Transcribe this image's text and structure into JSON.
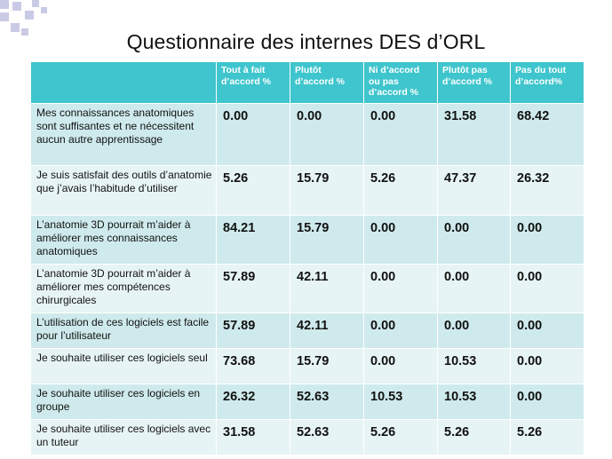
{
  "title": "Questionnaire des internes DES d’ORL",
  "columns": [
    "",
    "Tout à fait d’accord %",
    "Plutôt d’accord %",
    "Ni d’accord ou pas d’accord %",
    "Plutôt pas d’accord %",
    "Pas du tout d’accord%"
  ],
  "rows": [
    {
      "statement": "Mes connaissances anatomiques sont suffisantes et ne nécessitent aucun autre apprentissage",
      "values": [
        "0.00",
        "0.00",
        "0.00",
        "31.58",
        "68.42"
      ]
    },
    {
      "statement": "Je suis satisfait des outils d’anatomie que j’avais l’habitude d’utiliser",
      "values": [
        "5.26",
        "15.79",
        "5.26",
        "47.37",
        "26.32"
      ]
    },
    {
      "statement": "L’anatomie 3D pourrait m’aider à améliorer mes connaissances anatomiques",
      "values": [
        "84.21",
        "15.79",
        "0.00",
        "0.00",
        "0.00"
      ]
    },
    {
      "statement": "L’anatomie 3D pourrait m’aider à améliorer mes compétences chirurgicales",
      "values": [
        "57.89",
        "42.11",
        "0.00",
        "0.00",
        "0.00"
      ]
    },
    {
      "statement": "L’utilisation de ces logiciels est facile pour l’utilisateur",
      "values": [
        "57.89",
        "42.11",
        "0.00",
        "0.00",
        "0.00"
      ]
    },
    {
      "statement": "Je souhaite utiliser ces logiciels seul",
      "values": [
        "73.68",
        "15.79",
        "0.00",
        "10.53",
        "0.00"
      ]
    },
    {
      "statement": "Je souhaite utiliser ces logiciels en groupe",
      "values": [
        "26.32",
        "52.63",
        "10.53",
        "10.53",
        "0.00"
      ]
    },
    {
      "statement": "Je souhaite utiliser ces logiciels avec un tuteur",
      "values": [
        "31.58",
        "52.63",
        "5.26",
        "5.26",
        "5.26"
      ]
    }
  ],
  "colors": {
    "header_bg": "#3fc5cd",
    "row_dark": "#cfeaec",
    "row_light": "#e7f4f5",
    "decor": "#c9cbe6"
  }
}
